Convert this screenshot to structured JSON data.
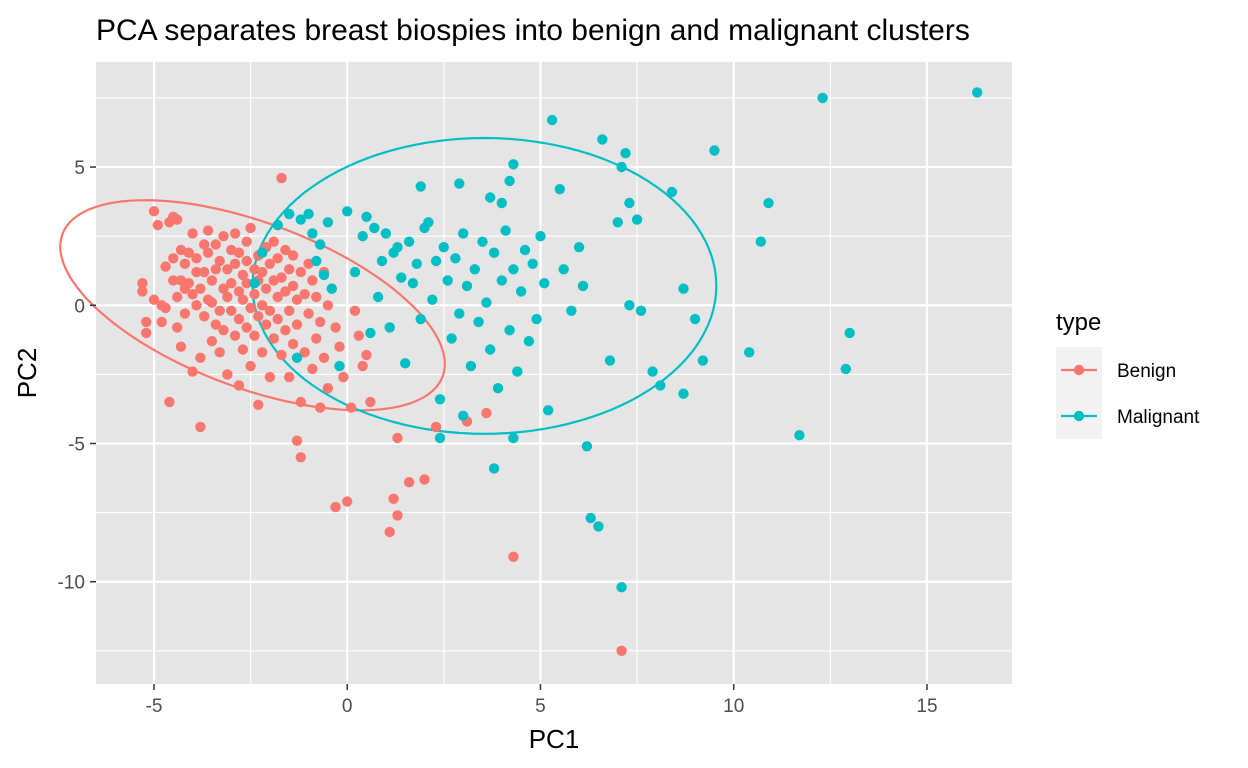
{
  "chart_data": {
    "type": "scatter",
    "title": "PCA separates breast biospies into benign and malignant clusters",
    "xlabel": "PC1",
    "ylabel": "PC2",
    "xlim": [
      -6.5,
      17.2
    ],
    "ylim": [
      -13.7,
      8.8
    ],
    "x_ticks": [
      -5,
      0,
      5,
      10,
      15
    ],
    "y_ticks": [
      -10,
      -5,
      0,
      5
    ],
    "grid": true,
    "panel_background": "#e5e5e5",
    "legend": {
      "title": "type",
      "placement": "right"
    },
    "series": [
      {
        "name": "Benign",
        "color": "#f8766d",
        "ellipse": {
          "center": [
            -2.45,
            0.0
          ],
          "semi_major": 5.6,
          "semi_minor": 2.8,
          "angle_deg": -32
        },
        "points": [
          [
            -5.3,
            0.5
          ],
          [
            -5.3,
            0.8
          ],
          [
            -5.2,
            -0.6
          ],
          [
            -5.2,
            -1.0
          ],
          [
            -5.0,
            3.4
          ],
          [
            -5.0,
            0.2
          ],
          [
            -4.9,
            2.9
          ],
          [
            -4.8,
            0.0
          ],
          [
            -4.8,
            -0.6
          ],
          [
            -4.7,
            1.4
          ],
          [
            -4.7,
            -0.1
          ],
          [
            -4.6,
            -3.5
          ],
          [
            -4.6,
            3.0
          ],
          [
            -4.5,
            3.2
          ],
          [
            -4.5,
            0.9
          ],
          [
            -4.5,
            1.7
          ],
          [
            -4.4,
            3.1
          ],
          [
            -4.4,
            0.3
          ],
          [
            -4.4,
            -0.8
          ],
          [
            -4.3,
            -1.5
          ],
          [
            -4.3,
            2.0
          ],
          [
            -4.3,
            0.9
          ],
          [
            -4.2,
            1.5
          ],
          [
            -4.2,
            -0.3
          ],
          [
            -4.2,
            0.6
          ],
          [
            -4.1,
            0.8
          ],
          [
            -4.1,
            1.9
          ],
          [
            -4.0,
            2.6
          ],
          [
            -4.0,
            0.4
          ],
          [
            -4.0,
            -2.4
          ],
          [
            -3.9,
            1.2
          ],
          [
            -3.9,
            0.0
          ],
          [
            -3.9,
            1.7
          ],
          [
            -3.8,
            -4.4
          ],
          [
            -3.8,
            -1.9
          ],
          [
            -3.8,
            0.6
          ],
          [
            -3.7,
            1.2
          ],
          [
            -3.7,
            2.2
          ],
          [
            -3.7,
            -0.4
          ],
          [
            -3.6,
            0.2
          ],
          [
            -3.6,
            1.9
          ],
          [
            -3.6,
            2.7
          ],
          [
            -3.5,
            0.9
          ],
          [
            -3.5,
            -1.3
          ],
          [
            -3.5,
            0.1
          ],
          [
            -3.4,
            1.3
          ],
          [
            -3.4,
            -0.7
          ],
          [
            -3.4,
            2.2
          ],
          [
            -3.3,
            -0.2
          ],
          [
            -3.3,
            1.6
          ],
          [
            -3.3,
            -1.7
          ],
          [
            -3.2,
            0.6
          ],
          [
            -3.2,
            2.5
          ],
          [
            -3.2,
            -0.9
          ],
          [
            -3.1,
            1.3
          ],
          [
            -3.1,
            0.3
          ],
          [
            -3.1,
            -2.5
          ],
          [
            -3.0,
            0.8
          ],
          [
            -3.0,
            2.0
          ],
          [
            -3.0,
            -0.2
          ],
          [
            -2.9,
            1.5
          ],
          [
            -2.9,
            -1.1
          ],
          [
            -2.9,
            2.6
          ],
          [
            -2.8,
            0.5
          ],
          [
            -2.8,
            -0.5
          ],
          [
            -2.8,
            1.9
          ],
          [
            -2.8,
            -2.9
          ],
          [
            -2.7,
            1.1
          ],
          [
            -2.7,
            0.2
          ],
          [
            -2.7,
            -1.6
          ],
          [
            -2.6,
            2.3
          ],
          [
            -2.6,
            0.8
          ],
          [
            -2.6,
            -0.8
          ],
          [
            -2.6,
            1.6
          ],
          [
            -2.5,
            -0.1
          ],
          [
            -2.5,
            2.8
          ],
          [
            -2.5,
            -2.2
          ],
          [
            -2.4,
            1.3
          ],
          [
            -2.4,
            0.4
          ],
          [
            -2.4,
            -1.1
          ],
          [
            -2.3,
            0.9
          ],
          [
            -2.3,
            1.8
          ],
          [
            -2.3,
            -0.4
          ],
          [
            -2.3,
            -3.6
          ],
          [
            -2.2,
            1.2
          ],
          [
            -2.2,
            0.0
          ],
          [
            -2.2,
            -1.7
          ],
          [
            -2.1,
            2.1
          ],
          [
            -2.1,
            0.6
          ],
          [
            -2.1,
            -0.7
          ],
          [
            -2.0,
            1.5
          ],
          [
            -2.0,
            -0.2
          ],
          [
            -2.0,
            -2.6
          ],
          [
            -1.9,
            0.9
          ],
          [
            -1.9,
            2.3
          ],
          [
            -1.9,
            -1.2
          ],
          [
            -1.8,
            0.3
          ],
          [
            -1.8,
            1.7
          ],
          [
            -1.8,
            -0.5
          ],
          [
            -1.7,
            4.6
          ],
          [
            -1.7,
            1.0
          ],
          [
            -1.7,
            -1.8
          ],
          [
            -1.6,
            0.5
          ],
          [
            -1.6,
            -0.9
          ],
          [
            -1.6,
            2.0
          ],
          [
            -1.5,
            -2.6
          ],
          [
            -1.5,
            1.3
          ],
          [
            -1.5,
            -0.2
          ],
          [
            -1.4,
            0.7
          ],
          [
            -1.4,
            -1.4
          ],
          [
            -1.4,
            1.8
          ],
          [
            -1.3,
            -4.9
          ],
          [
            -1.3,
            0.2
          ],
          [
            -1.3,
            -0.7
          ],
          [
            -1.2,
            -5.5
          ],
          [
            -1.2,
            1.2
          ],
          [
            -1.2,
            -3.5
          ],
          [
            -1.1,
            0.4
          ],
          [
            -1.1,
            -1.7
          ],
          [
            -1.0,
            1.5
          ],
          [
            -1.0,
            -0.3
          ],
          [
            -0.9,
            -2.3
          ],
          [
            -0.9,
            0.9
          ],
          [
            -0.8,
            -1.2
          ],
          [
            -0.8,
            0.3
          ],
          [
            -0.7,
            -3.7
          ],
          [
            -0.7,
            -0.6
          ],
          [
            -0.6,
            1.2
          ],
          [
            -0.6,
            -1.9
          ],
          [
            -0.5,
            0.0
          ],
          [
            -0.5,
            -3.0
          ],
          [
            -0.4,
            0.6
          ],
          [
            -0.3,
            -7.3
          ],
          [
            -0.3,
            -0.8
          ],
          [
            -0.2,
            -1.5
          ],
          [
            -0.1,
            -2.6
          ],
          [
            0.0,
            -7.1
          ],
          [
            0.1,
            -3.7
          ],
          [
            0.2,
            -0.2
          ],
          [
            0.3,
            -1.1
          ],
          [
            0.4,
            -2.2
          ],
          [
            0.5,
            -1.8
          ],
          [
            0.6,
            -3.5
          ],
          [
            1.1,
            -8.2
          ],
          [
            1.2,
            -7.0
          ],
          [
            1.3,
            -7.6
          ],
          [
            1.3,
            -4.8
          ],
          [
            1.6,
            -6.4
          ],
          [
            2.0,
            -6.3
          ],
          [
            2.3,
            -4.4
          ],
          [
            3.1,
            -4.2
          ],
          [
            3.6,
            -3.9
          ],
          [
            4.3,
            -9.1
          ],
          [
            7.1,
            -12.5
          ]
        ]
      },
      {
        "name": "Malignant",
        "color": "#00bfc4",
        "ellipse": {
          "center": [
            3.55,
            0.7
          ],
          "semi_major": 6.0,
          "semi_minor": 5.35,
          "angle_deg": 0
        },
        "points": [
          [
            -2.4,
            0.8
          ],
          [
            -2.2,
            1.9
          ],
          [
            -1.8,
            2.9
          ],
          [
            -1.5,
            3.3
          ],
          [
            -1.3,
            -1.9
          ],
          [
            -1.2,
            3.1
          ],
          [
            -1.0,
            3.3
          ],
          [
            -0.9,
            2.6
          ],
          [
            -0.8,
            1.6
          ],
          [
            -0.7,
            2.2
          ],
          [
            -0.6,
            1.1
          ],
          [
            -0.5,
            3.0
          ],
          [
            -0.4,
            0.6
          ],
          [
            -0.2,
            -2.2
          ],
          [
            0.0,
            3.4
          ],
          [
            0.2,
            1.2
          ],
          [
            0.4,
            2.5
          ],
          [
            0.5,
            3.2
          ],
          [
            0.6,
            -1.0
          ],
          [
            0.7,
            2.8
          ],
          [
            0.8,
            0.3
          ],
          [
            0.9,
            1.6
          ],
          [
            1.0,
            2.6
          ],
          [
            1.1,
            -0.8
          ],
          [
            1.2,
            1.9
          ],
          [
            1.3,
            2.1
          ],
          [
            1.4,
            1.0
          ],
          [
            1.5,
            -2.1
          ],
          [
            1.6,
            2.3
          ],
          [
            1.7,
            0.8
          ],
          [
            1.8,
            1.5
          ],
          [
            1.9,
            -0.5
          ],
          [
            2.0,
            2.8
          ],
          [
            2.1,
            3.0
          ],
          [
            2.2,
            0.2
          ],
          [
            2.3,
            1.6
          ],
          [
            2.4,
            -3.4
          ],
          [
            2.5,
            2.1
          ],
          [
            2.6,
            0.9
          ],
          [
            2.7,
            -1.2
          ],
          [
            2.8,
            1.7
          ],
          [
            2.9,
            -0.3
          ],
          [
            3.0,
            2.6
          ],
          [
            3.1,
            0.7
          ],
          [
            3.2,
            -2.2
          ],
          [
            3.3,
            1.3
          ],
          [
            3.4,
            -0.6
          ],
          [
            3.5,
            2.3
          ],
          [
            3.6,
            0.1
          ],
          [
            3.7,
            -1.6
          ],
          [
            3.8,
            1.9
          ],
          [
            3.9,
            -3.0
          ],
          [
            4.0,
            0.9
          ],
          [
            4.1,
            2.7
          ],
          [
            4.2,
            -0.9
          ],
          [
            4.3,
            1.3
          ],
          [
            4.4,
            -2.4
          ],
          [
            4.5,
            0.5
          ],
          [
            4.6,
            2.0
          ],
          [
            4.7,
            -1.3
          ],
          [
            4.8,
            1.5
          ],
          [
            4.9,
            -0.5
          ],
          [
            5.0,
            2.5
          ],
          [
            5.1,
            0.8
          ],
          [
            5.2,
            -3.8
          ],
          [
            5.3,
            6.7
          ],
          [
            5.5,
            4.2
          ],
          [
            5.6,
            1.3
          ],
          [
            5.8,
            -0.2
          ],
          [
            6.0,
            2.1
          ],
          [
            6.2,
            -5.1
          ],
          [
            6.3,
            -7.7
          ],
          [
            6.5,
            -8.0
          ],
          [
            6.6,
            6.0
          ],
          [
            6.8,
            -2.0
          ],
          [
            7.0,
            3.0
          ],
          [
            7.1,
            5.0
          ],
          [
            7.2,
            5.5
          ],
          [
            7.3,
            0.0
          ],
          [
            7.3,
            3.7
          ],
          [
            7.5,
            3.1
          ],
          [
            7.6,
            -0.2
          ],
          [
            7.9,
            -2.4
          ],
          [
            8.1,
            -2.9
          ],
          [
            8.4,
            4.1
          ],
          [
            8.7,
            0.6
          ],
          [
            8.7,
            -3.2
          ],
          [
            9.0,
            -0.5
          ],
          [
            9.2,
            -2.0
          ],
          [
            9.5,
            5.6
          ],
          [
            10.4,
            -1.7
          ],
          [
            10.7,
            2.3
          ],
          [
            10.9,
            3.7
          ],
          [
            11.7,
            -4.7
          ],
          [
            12.3,
            7.5
          ],
          [
            12.9,
            -2.3
          ],
          [
            13.0,
            -1.0
          ],
          [
            16.3,
            7.7
          ],
          [
            7.1,
            -10.2
          ],
          [
            3.8,
            -5.9
          ],
          [
            4.3,
            -4.8
          ],
          [
            2.4,
            -4.8
          ],
          [
            3.0,
            -4.0
          ],
          [
            4.0,
            3.7
          ],
          [
            2.9,
            4.4
          ],
          [
            1.9,
            4.3
          ],
          [
            3.7,
            3.9
          ],
          [
            4.3,
            5.1
          ],
          [
            4.2,
            4.5
          ],
          [
            6.1,
            0.7
          ]
        ]
      }
    ]
  }
}
